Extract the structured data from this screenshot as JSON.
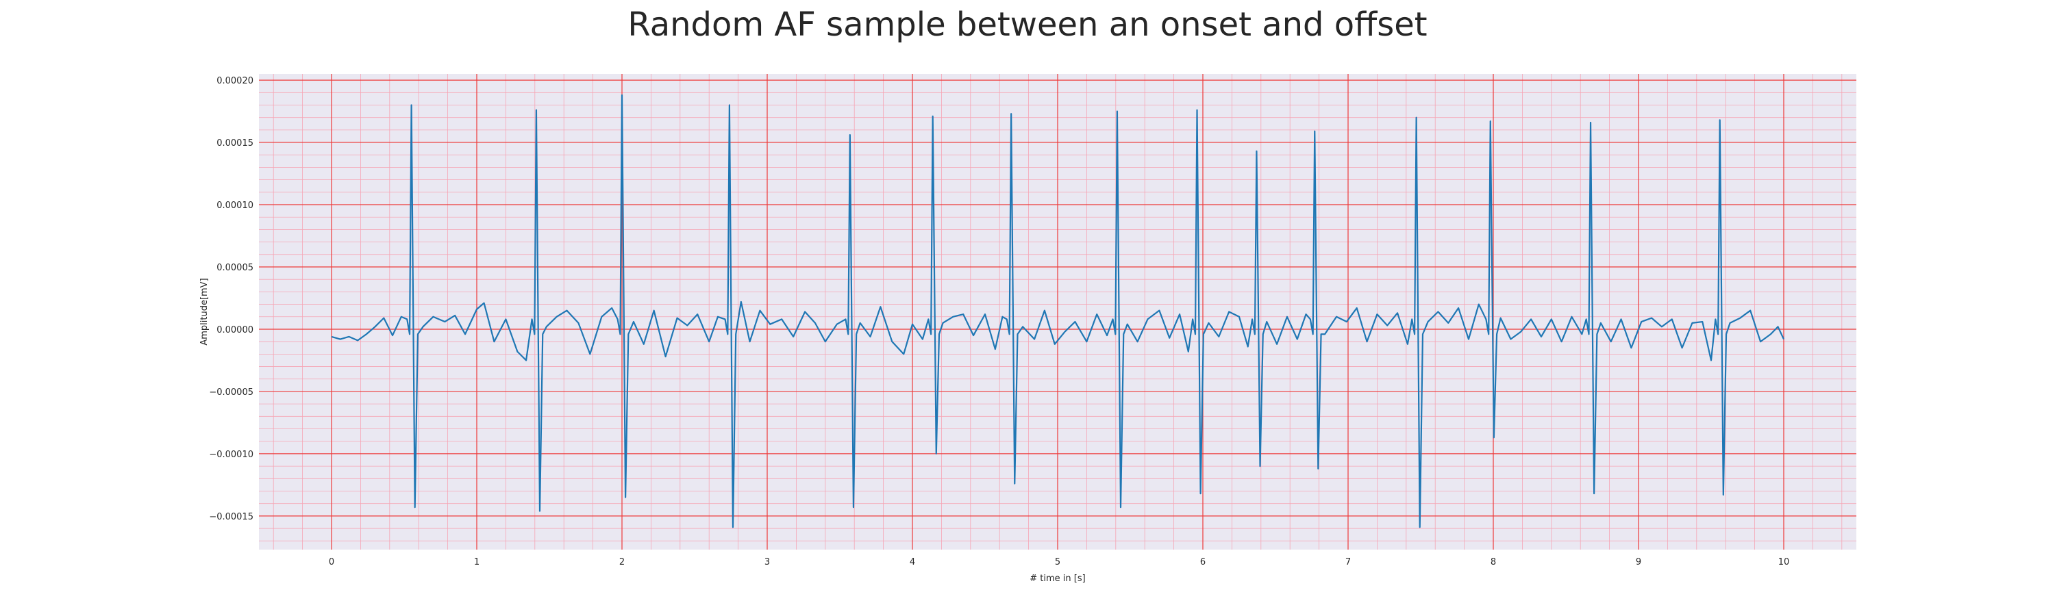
{
  "chart_data": {
    "type": "line",
    "title": "Random AF sample between an onset and offset",
    "xlabel": "# time in [s]",
    "ylabel": "Amplitude[mV]",
    "xlim": [
      -0.5,
      10.5
    ],
    "ylim": [
      -0.000177,
      0.000205
    ],
    "xticks": [
      0,
      1,
      2,
      3,
      4,
      5,
      6,
      7,
      8,
      9,
      10
    ],
    "xtick_labels": [
      "0",
      "1",
      "2",
      "3",
      "4",
      "5",
      "6",
      "7",
      "8",
      "9",
      "10"
    ],
    "yticks": [
      -0.00015,
      -0.0001,
      -5e-05,
      0,
      5e-05,
      0.0001,
      0.00015,
      0.0002
    ],
    "ytick_labels": [
      "−0.00015",
      "−0.00010",
      "−0.00005",
      "0.00000",
      "0.00005",
      "0.00010",
      "0.00015",
      "0.00020"
    ],
    "grid": true,
    "minor_grid": true,
    "background_color": "#eae8f2",
    "major_grid_color": "#ee3a3a",
    "minor_grid_color": "#f6a5b5",
    "series": [
      {
        "color": "#1f77b4",
        "beats": [
          {
            "t": 0.55,
            "r": 0.00018,
            "s": -0.000143
          },
          {
            "t": 1.41,
            "r": 0.000176,
            "s": -0.000146
          },
          {
            "t": 2.0,
            "r": 0.000188,
            "s": -0.000135
          },
          {
            "t": 2.74,
            "r": 0.00018,
            "s": -0.000159
          },
          {
            "t": 3.57,
            "r": 0.000156,
            "s": -0.000143
          },
          {
            "t": 4.14,
            "r": 0.000171,
            "s": -0.0001
          },
          {
            "t": 4.68,
            "r": 0.000173,
            "s": -0.000124
          },
          {
            "t": 5.41,
            "r": 0.000175,
            "s": -0.000143
          },
          {
            "t": 5.96,
            "r": 0.000176,
            "s": -0.000132
          },
          {
            "t": 6.37,
            "r": 0.000143,
            "s": -0.00011
          },
          {
            "t": 6.77,
            "r": 0.000159,
            "s": -0.000112
          },
          {
            "t": 7.47,
            "r": 0.00017,
            "s": -0.000159
          },
          {
            "t": 7.98,
            "r": 0.000167,
            "s": -8.7e-05
          },
          {
            "t": 8.67,
            "r": 0.000166,
            "s": -0.000132
          },
          {
            "t": 9.56,
            "r": 0.000168,
            "s": -0.000133
          }
        ],
        "baseline": [
          [
            0.0,
            -6e-06
          ],
          [
            0.06,
            -8e-06
          ],
          [
            0.12,
            -6e-06
          ],
          [
            0.18,
            -9e-06
          ],
          [
            0.24,
            -4e-06
          ],
          [
            0.3,
            2e-06
          ],
          [
            0.36,
            9e-06
          ],
          [
            0.42,
            -5e-06
          ],
          [
            0.48,
            1e-05
          ],
          [
            0.63,
            2e-06
          ],
          [
            0.7,
            1e-05
          ],
          [
            0.78,
            6e-06
          ],
          [
            0.85,
            1.1e-05
          ],
          [
            0.92,
            -4e-06
          ],
          [
            1.0,
            1.6e-05
          ],
          [
            1.05,
            2.1e-05
          ],
          [
            1.12,
            -1e-05
          ],
          [
            1.2,
            8e-06
          ],
          [
            1.28,
            -1.8e-05
          ],
          [
            1.34,
            -2.5e-05
          ],
          [
            1.48,
            2e-06
          ],
          [
            1.55,
            1e-05
          ],
          [
            1.62,
            1.5e-05
          ],
          [
            1.7,
            5e-06
          ],
          [
            1.78,
            -2e-05
          ],
          [
            1.86,
            1e-05
          ],
          [
            1.93,
            1.7e-05
          ],
          [
            2.08,
            6e-06
          ],
          [
            2.15,
            -1.2e-05
          ],
          [
            2.22,
            1.5e-05
          ],
          [
            2.3,
            -2.2e-05
          ],
          [
            2.38,
            9e-06
          ],
          [
            2.45,
            3e-06
          ],
          [
            2.52,
            1.2e-05
          ],
          [
            2.6,
            -1e-05
          ],
          [
            2.66,
            1e-05
          ],
          [
            2.82,
            2.2e-05
          ],
          [
            2.88,
            -1e-05
          ],
          [
            2.95,
            1.5e-05
          ],
          [
            3.02,
            4e-06
          ],
          [
            3.1,
            8e-06
          ],
          [
            3.18,
            -6e-06
          ],
          [
            3.26,
            1.4e-05
          ],
          [
            3.33,
            5e-06
          ],
          [
            3.4,
            -1e-05
          ],
          [
            3.48,
            4e-06
          ],
          [
            3.64,
            5e-06
          ],
          [
            3.71,
            -6e-06
          ],
          [
            3.78,
            1.8e-05
          ],
          [
            3.86,
            -1e-05
          ],
          [
            3.94,
            -2e-05
          ],
          [
            4.0,
            4e-06
          ],
          [
            4.07,
            -8e-06
          ],
          [
            4.21,
            5e-06
          ],
          [
            4.28,
            1e-05
          ],
          [
            4.35,
            1.2e-05
          ],
          [
            4.42,
            -5e-06
          ],
          [
            4.5,
            1.2e-05
          ],
          [
            4.57,
            -1.6e-05
          ],
          [
            4.62,
            1e-05
          ],
          [
            4.76,
            2e-06
          ],
          [
            4.84,
            -8e-06
          ],
          [
            4.91,
            1.5e-05
          ],
          [
            4.98,
            -1.2e-05
          ],
          [
            5.05,
            -2e-06
          ],
          [
            5.12,
            6e-06
          ],
          [
            5.2,
            -1e-05
          ],
          [
            5.27,
            1.2e-05
          ],
          [
            5.34,
            -5e-06
          ],
          [
            5.48,
            4e-06
          ],
          [
            5.55,
            -1e-05
          ],
          [
            5.62,
            8e-06
          ],
          [
            5.7,
            1.5e-05
          ],
          [
            5.77,
            -7e-06
          ],
          [
            5.84,
            1.2e-05
          ],
          [
            5.9,
            -1.8e-05
          ],
          [
            6.04,
            5e-06
          ],
          [
            6.11,
            -6e-06
          ],
          [
            6.18,
            1.4e-05
          ],
          [
            6.25,
            1e-05
          ],
          [
            6.31,
            -1.4e-05
          ],
          [
            6.44,
            6e-06
          ],
          [
            6.51,
            -1.2e-05
          ],
          [
            6.58,
            1e-05
          ],
          [
            6.65,
            -8e-06
          ],
          [
            6.71,
            1.2e-05
          ],
          [
            6.84,
            -4e-06
          ],
          [
            6.92,
            1e-05
          ],
          [
            6.99,
            6e-06
          ],
          [
            7.06,
            1.7e-05
          ],
          [
            7.13,
            -1e-05
          ],
          [
            7.2,
            1.2e-05
          ],
          [
            7.27,
            3e-06
          ],
          [
            7.34,
            1.3e-05
          ],
          [
            7.41,
            -1.2e-05
          ],
          [
            7.55,
            6e-06
          ],
          [
            7.62,
            1.4e-05
          ],
          [
            7.69,
            5e-06
          ],
          [
            7.76,
            1.7e-05
          ],
          [
            7.83,
            -8e-06
          ],
          [
            7.9,
            2e-05
          ],
          [
            8.05,
            9e-06
          ],
          [
            8.12,
            -8e-06
          ],
          [
            8.19,
            -2e-06
          ],
          [
            8.26,
            8e-06
          ],
          [
            8.33,
            -6e-06
          ],
          [
            8.4,
            8e-06
          ],
          [
            8.47,
            -1e-05
          ],
          [
            8.54,
            1e-05
          ],
          [
            8.61,
            -4e-06
          ],
          [
            8.74,
            5e-06
          ],
          [
            8.81,
            -1e-05
          ],
          [
            8.88,
            8e-06
          ],
          [
            8.95,
            -1.5e-05
          ],
          [
            9.02,
            6e-06
          ],
          [
            9.09,
            9e-06
          ],
          [
            9.16,
            2e-06
          ],
          [
            9.23,
            8e-06
          ],
          [
            9.3,
            -1.5e-05
          ],
          [
            9.37,
            5e-06
          ],
          [
            9.44,
            6e-06
          ],
          [
            9.5,
            -2.5e-05
          ],
          [
            9.63,
            5e-06
          ],
          [
            9.7,
            9e-06
          ],
          [
            9.77,
            1.5e-05
          ],
          [
            9.84,
            -1e-05
          ],
          [
            9.91,
            -4e-06
          ],
          [
            9.96,
            2e-06
          ],
          [
            10.0,
            -8e-06
          ]
        ]
      }
    ]
  }
}
